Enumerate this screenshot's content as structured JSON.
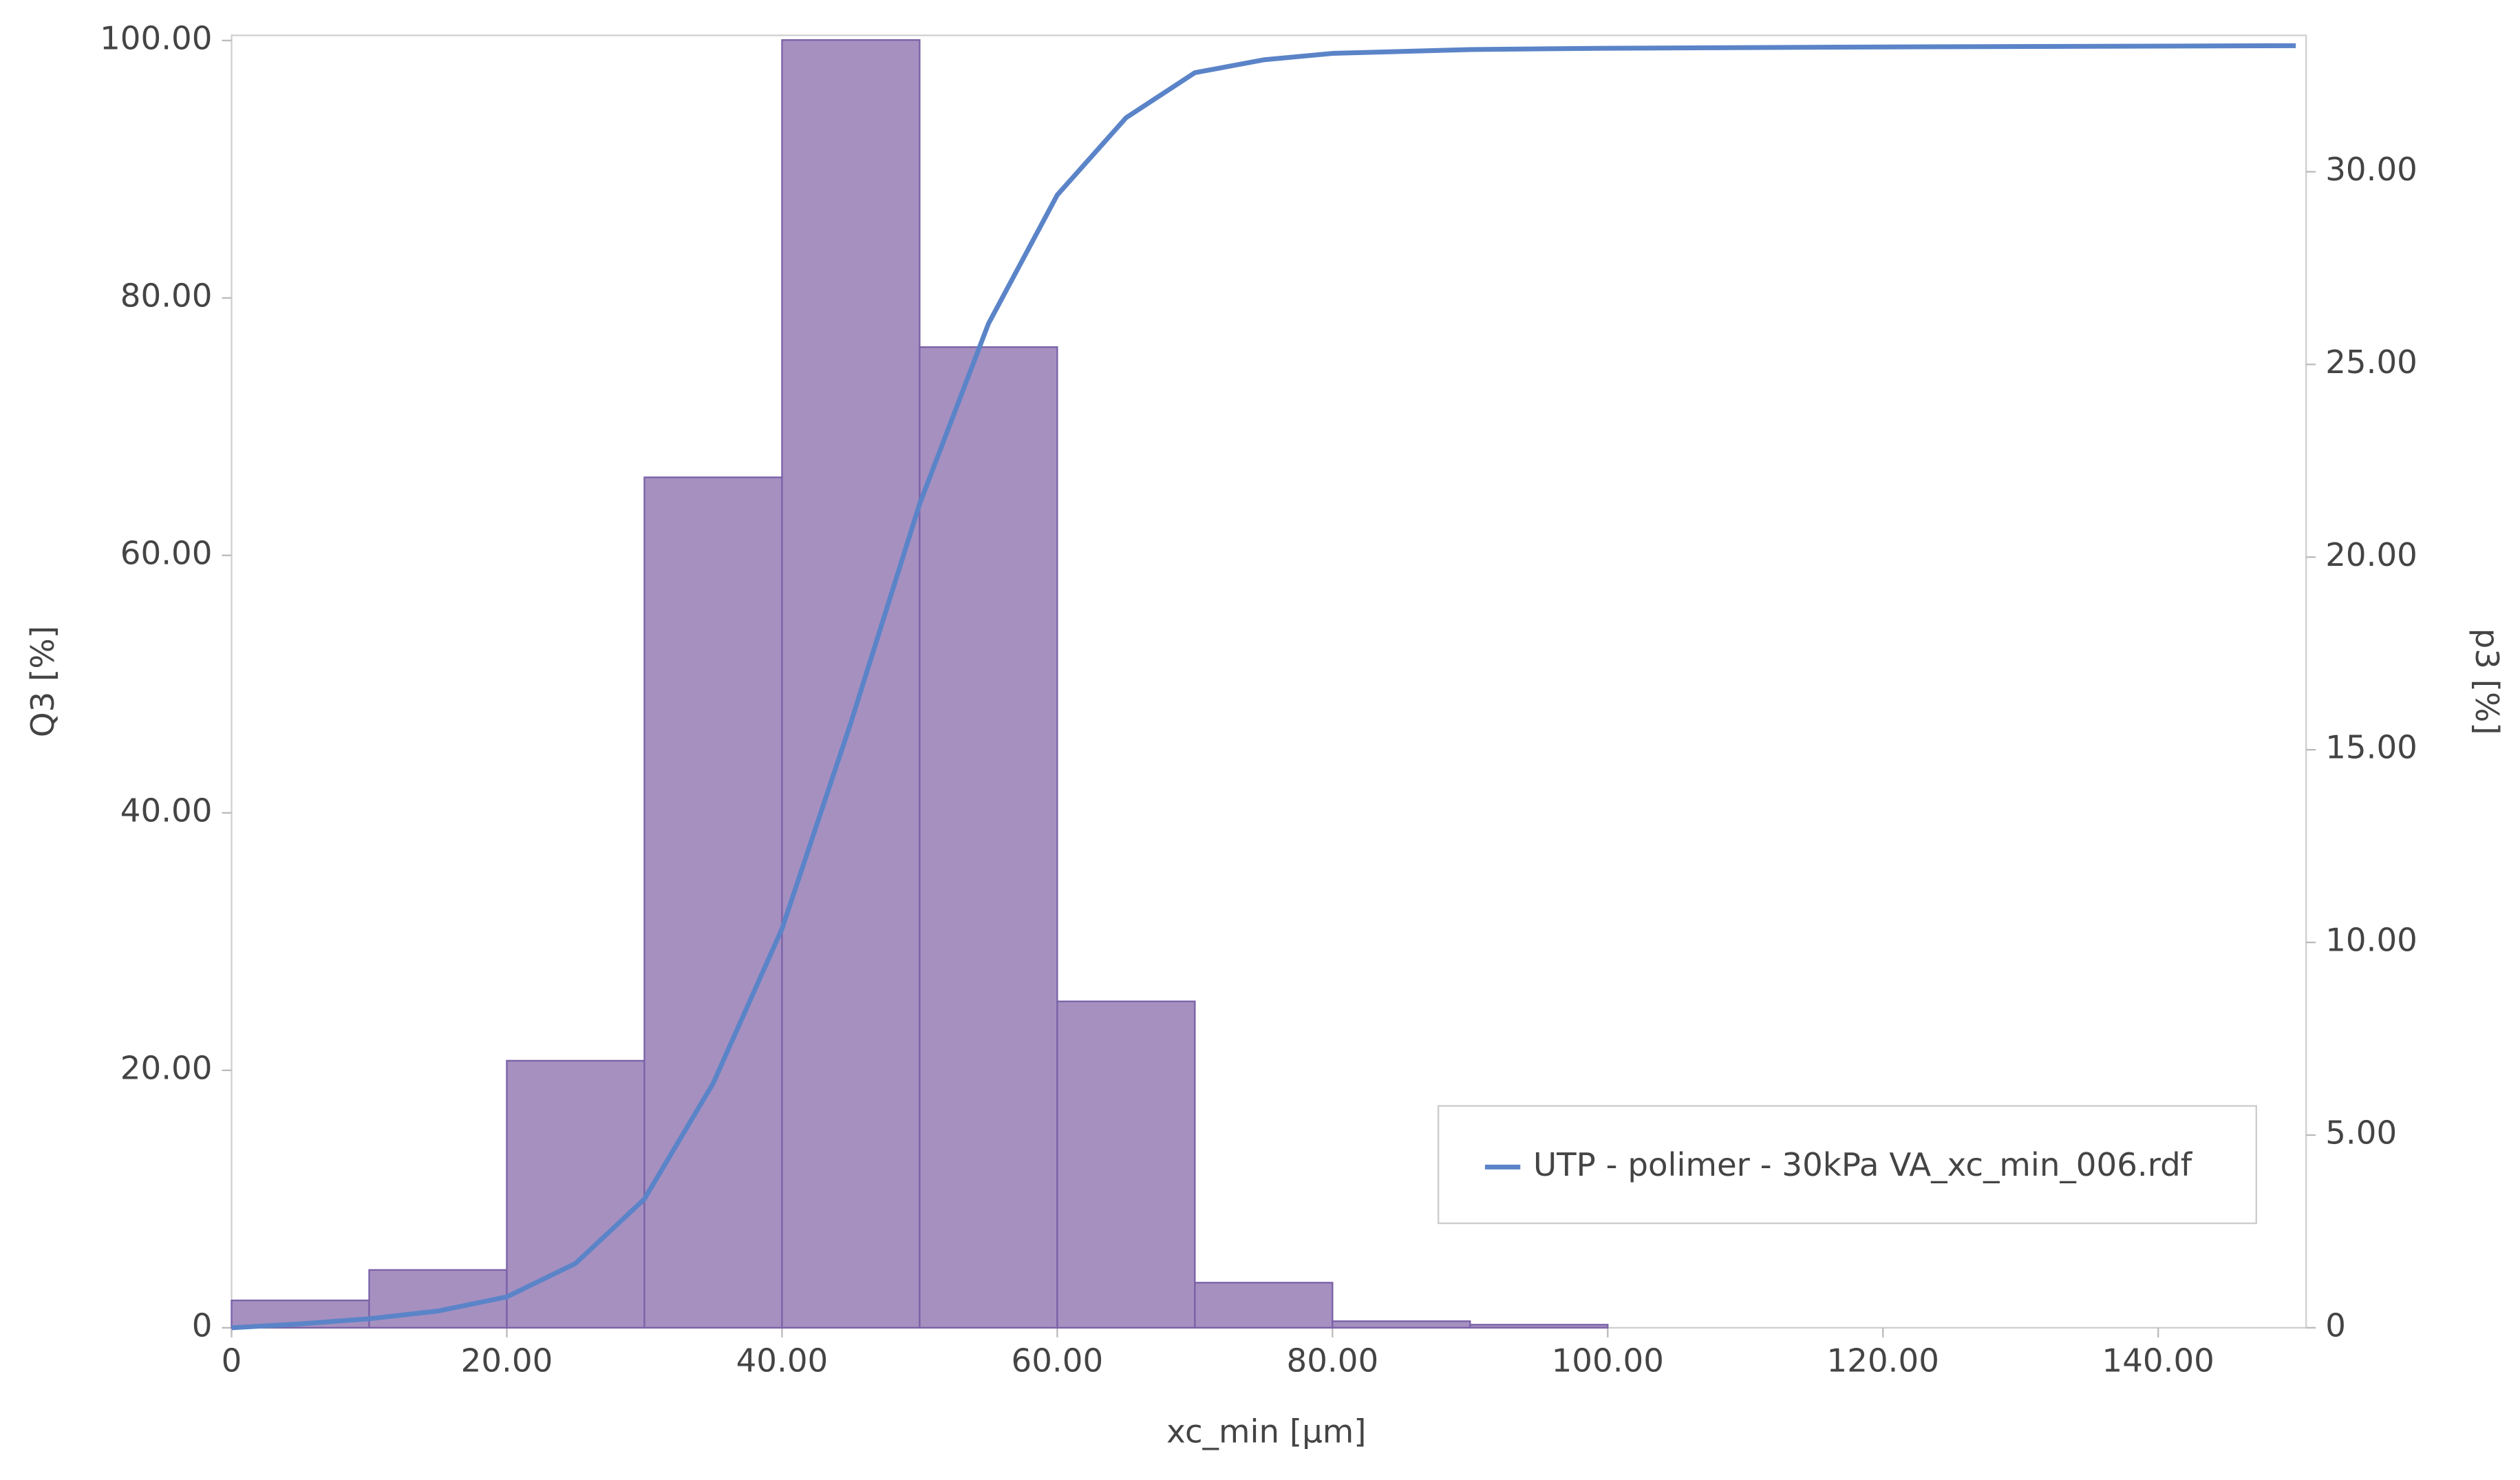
{
  "chart_data": {
    "type": "histogram",
    "xlabel": "xc_min [µm]",
    "ylabel": "Q3 [%]",
    "y2label": "p3 [%]",
    "bins": [
      0,
      10,
      20,
      30,
      40,
      50,
      60,
      70,
      80,
      90,
      100
    ],
    "values": [
      0.71,
      1.5,
      6.93,
      22.07,
      33.42,
      25.45,
      8.47,
      1.17,
      0.17,
      0.08
    ],
    "axis": "y2",
    "color": "#a690c0",
    "edge_color": "#7a62a8",
    "series": [
      {
        "name": "UTP - polimer - 30kPa VA_xc_min_006.rdf",
        "type": "line",
        "color": "#5b84c8",
        "axis": "y",
        "x": [
          0,
          5,
          10,
          15,
          20,
          25,
          30,
          35,
          40,
          45,
          50,
          55,
          60,
          65,
          70,
          75,
          80,
          90,
          100,
          120,
          150
        ],
        "values": [
          0,
          0.3,
          0.7,
          1.3,
          2.4,
          5,
          10,
          19,
          31,
          47,
          64,
          78,
          88,
          94,
          97.5,
          98.5,
          99,
          99.3,
          99.4,
          99.5,
          99.6
        ]
      }
    ],
    "xlim": [
      0,
      150.75
    ],
    "xticks": [
      0,
      {
        "value": 20,
        "label": "20.00"
      },
      {
        "value": 40,
        "label": "40.00"
      },
      {
        "value": 60,
        "label": "60.00"
      },
      {
        "value": 80,
        "label": "80.00"
      },
      {
        "value": 100,
        "label": "100.00"
      },
      {
        "value": 120,
        "label": "120.00"
      },
      {
        "value": 140,
        "label": "140.00"
      }
    ],
    "ylim": [
      0,
      100.4
    ],
    "yticks": [
      0,
      {
        "value": 20,
        "label": "20.00"
      },
      {
        "value": 40,
        "label": "40.00"
      },
      {
        "value": 60,
        "label": "60.00"
      },
      {
        "value": 80,
        "label": "80.00"
      },
      {
        "value": 100,
        "label": "100.00"
      }
    ],
    "y2lim": [
      0,
      33.54
    ],
    "y2ticks": [
      0,
      {
        "value": 5,
        "label": "5.00"
      },
      {
        "value": 10,
        "label": "10.00"
      },
      {
        "value": 15,
        "label": "15.00"
      },
      {
        "value": 20,
        "label": "20.00"
      },
      {
        "value": 25,
        "label": "25.00"
      },
      {
        "value": 30,
        "label": "30.00"
      }
    ],
    "legend": "lower right"
  }
}
